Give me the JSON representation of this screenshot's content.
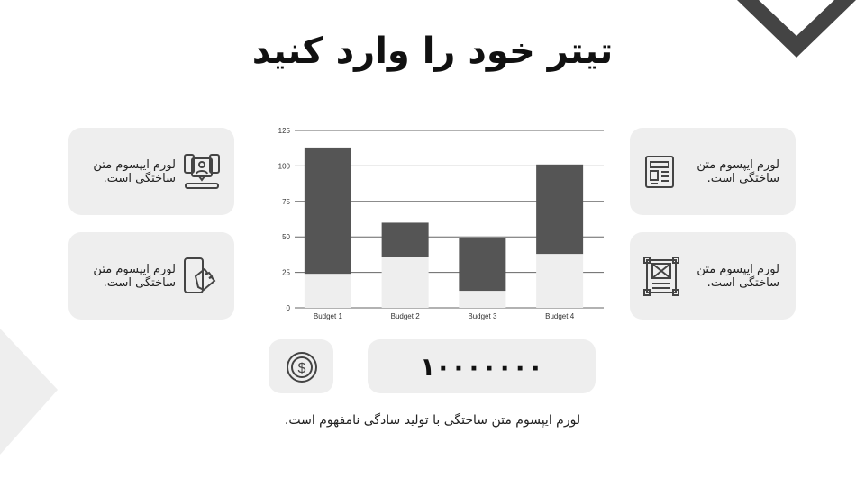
{
  "title": "تیتر خود را وارد کنید",
  "cards": [
    {
      "text_line1": "لورم ایپسوم متن",
      "text_line2": "ساختگی است.",
      "icon": "video-conference-icon"
    },
    {
      "text_line1": "لورم ایپسوم متن",
      "text_line2": "ساختگی است.",
      "icon": "touch-phone-icon"
    },
    {
      "text_line1": "لورم ایپسوم متن",
      "text_line2": "ساختگی است.",
      "icon": "newspaper-icon"
    },
    {
      "text_line1": "لورم ایپسوم متن",
      "text_line2": "ساختگی است.",
      "icon": "blueprint-icon"
    }
  ],
  "amount": {
    "icon": "dollar-coin-icon",
    "value": "۱۰۰۰۰۰۰۰"
  },
  "caption": "لورم ایپسوم متن ساختگی با تولید سادگی نامفهوم است.",
  "colors": {
    "card": "#eeeeee",
    "dark": "#555555",
    "light": "#eeeeee",
    "chevron": "#444444"
  },
  "chart_data": {
    "type": "bar",
    "stacked": true,
    "categories": [
      "Budget 1",
      "Budget 2",
      "Budget 3",
      "Budget 4"
    ],
    "series": [
      {
        "values": [
          24,
          36,
          12,
          38
        ],
        "color": "#eeeeee"
      },
      {
        "values": [
          89,
          24,
          37,
          63
        ],
        "color": "#555555"
      }
    ],
    "ylim": [
      0,
      125
    ],
    "yticks": [
      0,
      25,
      50,
      75,
      100,
      125
    ],
    "grid": true
  }
}
